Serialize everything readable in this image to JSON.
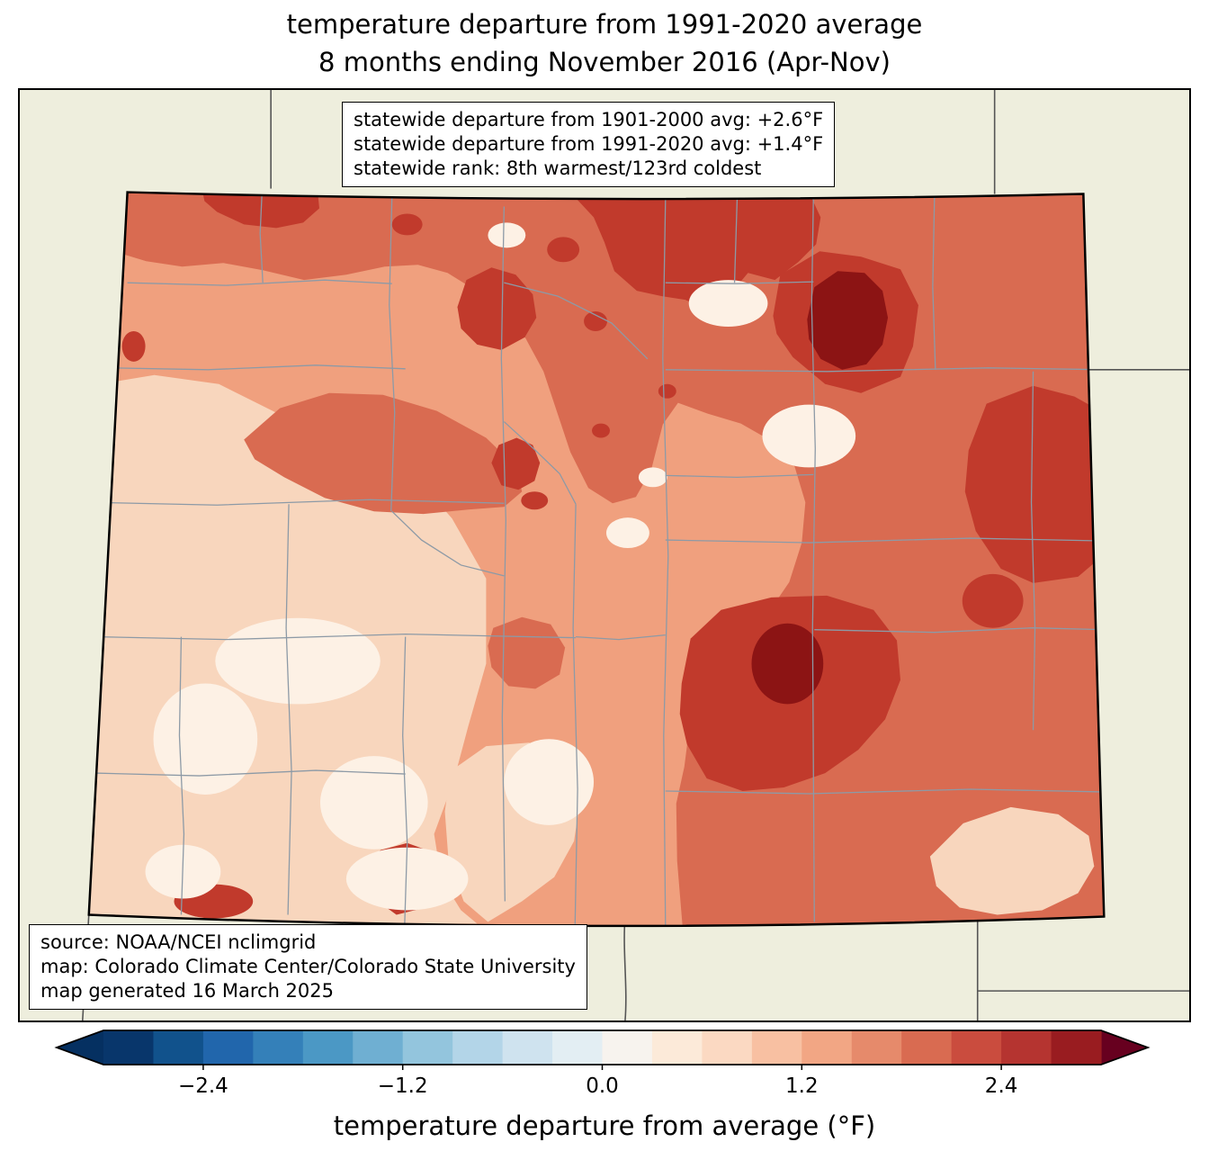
{
  "title": {
    "line1": "temperature departure from 1991-2020 average",
    "line2": "8 months ending November 2016 (Apr-Nov)"
  },
  "stats_box": {
    "lines": [
      "statewide departure from 1901-2000 avg: +2.6°F",
      "statewide departure from 1991-2020 avg: +1.4°F",
      "statewide rank: 8th warmest/123rd coldest"
    ]
  },
  "source_box": {
    "lines": [
      "source: NOAA/NCEI nclimgrid",
      "map: Colorado Climate Center/Colorado State University",
      "map generated 16 March 2025"
    ]
  },
  "map": {
    "region_label": "Colorado",
    "palette": {
      "outside": "#eeeedd",
      "base": "#f0a07e",
      "peach": "#f8d6bd",
      "cream": "#fdf1e5",
      "medium": "#d96b51",
      "dark": "#c13a2c",
      "maroon": "#8c1414",
      "county_line": "#8d9aa6",
      "neighbor_line": "#555555",
      "state_border": "#000000"
    }
  },
  "colorbar": {
    "label": "temperature departure from average (°F)",
    "ticks": [
      "−2.4",
      "−1.2",
      "0.0",
      "1.2",
      "2.4"
    ],
    "tick_values": [
      -2.4,
      -1.2,
      0.0,
      1.2,
      2.4
    ],
    "range": [
      -3.0,
      3.0
    ],
    "segment_colors": [
      "#08366b",
      "#11528c",
      "#2166ac",
      "#3480b9",
      "#4b98c5",
      "#6fafd2",
      "#93c5dd",
      "#b3d5e8",
      "#cfe3ef",
      "#e3eef3",
      "#f7f3ee",
      "#fcead9",
      "#fbd9c2",
      "#f8c0a2",
      "#f2a684",
      "#e68a6b",
      "#d96b51",
      "#ca4c3e",
      "#b53430",
      "#991c20"
    ],
    "under_color": "#053061",
    "over_color": "#67001f"
  },
  "chart_data": {
    "type": "choropleth_map",
    "region": "Colorado",
    "title": "temperature departure from 1991-2020 average — 8 months ending November 2016 (Apr-Nov)",
    "statewide_departure_from_1901_2000_avg_F": "+2.6",
    "statewide_departure_from_1991_2020_avg_F": "+1.4",
    "statewide_rank": "8th warmest/123rd coldest",
    "colorbar_label": "temperature departure from average (°F)",
    "colorbar_tick_values": [
      -2.4,
      -1.2,
      0.0,
      1.2,
      2.4
    ],
    "colorbar_range": [
      -3.0,
      3.0
    ],
    "source": "NOAA/NCEI nclimgrid",
    "map_credit": "Colorado Climate Center/Colorado State University",
    "map_generated": "16 March 2025"
  }
}
